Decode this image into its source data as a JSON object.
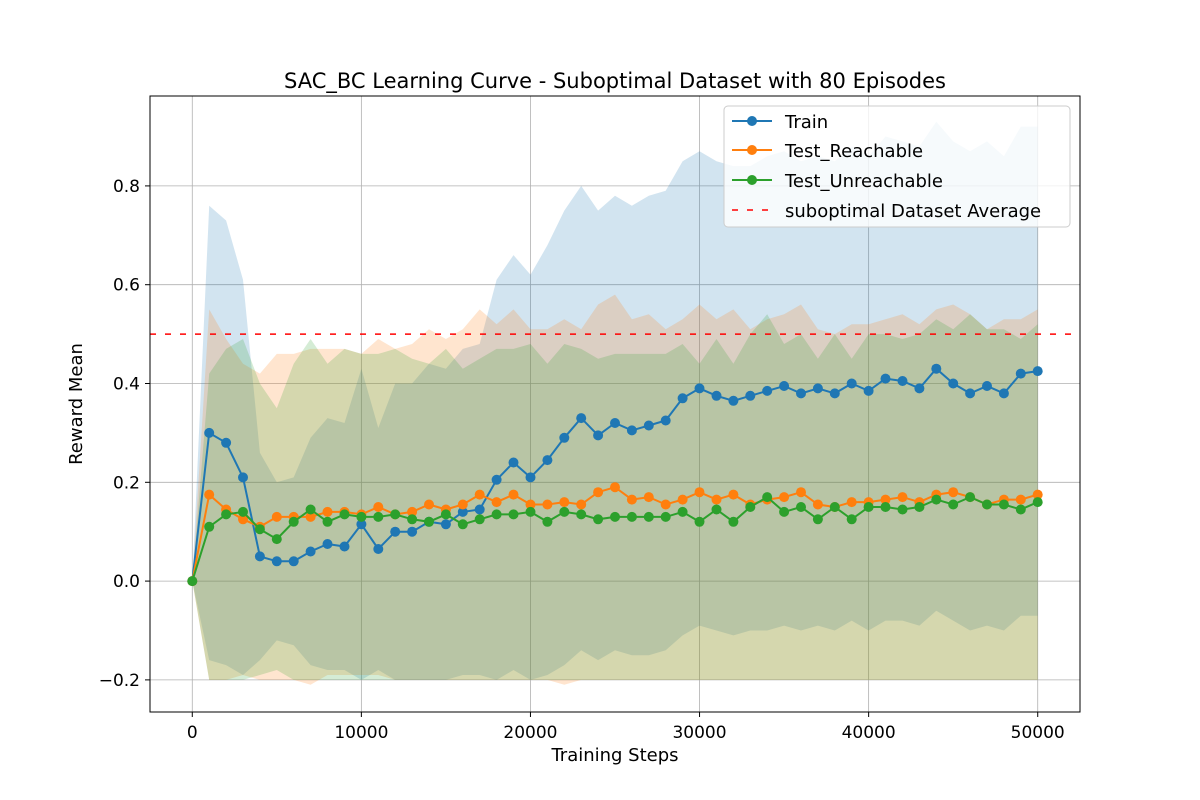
{
  "chart_data": {
    "type": "line",
    "title": "SAC_BC Learning Curve - Suboptimal Dataset with 80 Episodes",
    "xlabel": "Training Steps",
    "ylabel": "Reward Mean",
    "xlim": [
      -2500,
      52500
    ],
    "ylim": [
      -0.265,
      0.982
    ],
    "xticks": [
      0,
      10000,
      20000,
      30000,
      40000,
      50000
    ],
    "xtick_labels": [
      "0",
      "10000",
      "20000",
      "30000",
      "40000",
      "50000"
    ],
    "yticks": [
      -0.2,
      0.0,
      0.2,
      0.4,
      0.6,
      0.8
    ],
    "ytick_labels": [
      "−0.2",
      "0.0",
      "0.2",
      "0.4",
      "0.6",
      "0.8"
    ],
    "grid": true,
    "legend_position": "top-right",
    "x": [
      0,
      1000,
      2000,
      3000,
      4000,
      5000,
      6000,
      7000,
      8000,
      9000,
      10000,
      11000,
      12000,
      13000,
      14000,
      15000,
      16000,
      17000,
      18000,
      19000,
      20000,
      21000,
      22000,
      23000,
      24000,
      25000,
      26000,
      27000,
      28000,
      29000,
      30000,
      31000,
      32000,
      33000,
      34000,
      35000,
      36000,
      37000,
      38000,
      39000,
      40000,
      41000,
      42000,
      43000,
      44000,
      45000,
      46000,
      47000,
      48000,
      49000,
      50000
    ],
    "series": [
      {
        "name": "Train",
        "color": "#1f77b4",
        "values": [
          0.0,
          0.3,
          0.28,
          0.21,
          0.05,
          0.04,
          0.04,
          0.06,
          0.075,
          0.07,
          0.115,
          0.065,
          0.1,
          0.1,
          0.12,
          0.115,
          0.14,
          0.145,
          0.205,
          0.24,
          0.21,
          0.245,
          0.29,
          0.33,
          0.295,
          0.32,
          0.305,
          0.315,
          0.325,
          0.37,
          0.39,
          0.375,
          0.365,
          0.375,
          0.385,
          0.395,
          0.38,
          0.39,
          0.38,
          0.4,
          0.385,
          0.41,
          0.405,
          0.39,
          0.43,
          0.4,
          0.38,
          0.395,
          0.38,
          0.42,
          0.425
        ],
        "upper": [
          0.0,
          0.76,
          0.73,
          0.61,
          0.26,
          0.2,
          0.21,
          0.29,
          0.33,
          0.32,
          0.43,
          0.31,
          0.4,
          0.4,
          0.44,
          0.43,
          0.47,
          0.48,
          0.61,
          0.66,
          0.62,
          0.68,
          0.75,
          0.8,
          0.75,
          0.78,
          0.76,
          0.78,
          0.79,
          0.85,
          0.87,
          0.85,
          0.84,
          0.84,
          0.86,
          0.87,
          0.85,
          0.86,
          0.85,
          0.88,
          0.86,
          0.9,
          0.89,
          0.88,
          0.93,
          0.89,
          0.87,
          0.89,
          0.86,
          0.92,
          0.92
        ],
        "lower": [
          0.0,
          -0.16,
          -0.17,
          -0.19,
          -0.16,
          -0.12,
          -0.13,
          -0.17,
          -0.18,
          -0.18,
          -0.2,
          -0.18,
          -0.2,
          -0.2,
          -0.2,
          -0.2,
          -0.19,
          -0.19,
          -0.2,
          -0.18,
          -0.2,
          -0.19,
          -0.17,
          -0.14,
          -0.16,
          -0.14,
          -0.15,
          -0.15,
          -0.14,
          -0.11,
          -0.09,
          -0.1,
          -0.11,
          -0.1,
          -0.1,
          -0.09,
          -0.1,
          -0.09,
          -0.1,
          -0.08,
          -0.1,
          -0.08,
          -0.08,
          -0.09,
          -0.06,
          -0.08,
          -0.1,
          -0.09,
          -0.1,
          -0.07,
          -0.07
        ]
      },
      {
        "name": "Test_Reachable",
        "color": "#ff7f0e",
        "values": [
          0.0,
          0.175,
          0.145,
          0.125,
          0.11,
          0.13,
          0.13,
          0.13,
          0.14,
          0.14,
          0.135,
          0.15,
          0.135,
          0.14,
          0.155,
          0.145,
          0.155,
          0.175,
          0.16,
          0.175,
          0.155,
          0.155,
          0.16,
          0.155,
          0.18,
          0.19,
          0.165,
          0.17,
          0.155,
          0.165,
          0.18,
          0.165,
          0.175,
          0.155,
          0.165,
          0.17,
          0.18,
          0.155,
          0.15,
          0.16,
          0.16,
          0.165,
          0.17,
          0.16,
          0.175,
          0.18,
          0.17,
          0.155,
          0.165,
          0.165,
          0.175
        ],
        "upper": [
          0.0,
          0.55,
          0.49,
          0.44,
          0.42,
          0.46,
          0.46,
          0.47,
          0.47,
          0.47,
          0.46,
          0.49,
          0.47,
          0.48,
          0.51,
          0.49,
          0.51,
          0.55,
          0.52,
          0.55,
          0.51,
          0.51,
          0.53,
          0.51,
          0.56,
          0.58,
          0.53,
          0.54,
          0.51,
          0.53,
          0.56,
          0.53,
          0.55,
          0.51,
          0.53,
          0.54,
          0.56,
          0.51,
          0.5,
          0.52,
          0.52,
          0.53,
          0.54,
          0.52,
          0.55,
          0.56,
          0.54,
          0.51,
          0.53,
          0.53,
          0.55
        ],
        "lower": [
          0.0,
          -0.2,
          -0.2,
          -0.19,
          -0.2,
          -0.2,
          -0.2,
          -0.21,
          -0.19,
          -0.19,
          -0.19,
          -0.19,
          -0.2,
          -0.2,
          -0.2,
          -0.2,
          -0.2,
          -0.2,
          -0.2,
          -0.2,
          -0.2,
          -0.2,
          -0.21,
          -0.2,
          -0.2,
          -0.2,
          -0.2,
          -0.2,
          -0.2,
          -0.2,
          -0.2,
          -0.2,
          -0.2,
          -0.2,
          -0.2,
          -0.2,
          -0.2,
          -0.2,
          -0.2,
          -0.2,
          -0.2,
          -0.2,
          -0.2,
          -0.2,
          -0.2,
          -0.2,
          -0.2,
          -0.2,
          -0.2,
          -0.2,
          -0.2
        ]
      },
      {
        "name": "Test_Unreachable",
        "color": "#2ca02c",
        "values": [
          0.0,
          0.11,
          0.135,
          0.14,
          0.105,
          0.085,
          0.12,
          0.145,
          0.12,
          0.135,
          0.13,
          0.13,
          0.135,
          0.125,
          0.12,
          0.135,
          0.115,
          0.125,
          0.135,
          0.135,
          0.14,
          0.12,
          0.14,
          0.135,
          0.125,
          0.13,
          0.13,
          0.13,
          0.13,
          0.14,
          0.12,
          0.145,
          0.12,
          0.15,
          0.17,
          0.14,
          0.15,
          0.125,
          0.15,
          0.125,
          0.15,
          0.15,
          0.145,
          0.15,
          0.165,
          0.155,
          0.17,
          0.155,
          0.155,
          0.145,
          0.16
        ],
        "upper": [
          0.0,
          0.42,
          0.47,
          0.49,
          0.4,
          0.35,
          0.44,
          0.49,
          0.44,
          0.47,
          0.46,
          0.46,
          0.47,
          0.45,
          0.44,
          0.47,
          0.43,
          0.45,
          0.47,
          0.47,
          0.48,
          0.44,
          0.48,
          0.47,
          0.45,
          0.46,
          0.46,
          0.46,
          0.46,
          0.48,
          0.44,
          0.49,
          0.44,
          0.5,
          0.54,
          0.48,
          0.5,
          0.45,
          0.5,
          0.45,
          0.5,
          0.5,
          0.49,
          0.5,
          0.53,
          0.51,
          0.54,
          0.51,
          0.51,
          0.49,
          0.52
        ],
        "lower": [
          0.0,
          -0.2,
          -0.2,
          -0.2,
          -0.19,
          -0.18,
          -0.2,
          -0.2,
          -0.2,
          -0.2,
          -0.2,
          -0.2,
          -0.2,
          -0.2,
          -0.2,
          -0.2,
          -0.2,
          -0.2,
          -0.2,
          -0.2,
          -0.2,
          -0.2,
          -0.2,
          -0.2,
          -0.2,
          -0.2,
          -0.2,
          -0.2,
          -0.2,
          -0.2,
          -0.2,
          -0.2,
          -0.2,
          -0.2,
          -0.2,
          -0.2,
          -0.2,
          -0.2,
          -0.2,
          -0.2,
          -0.2,
          -0.2,
          -0.2,
          -0.2,
          -0.2,
          -0.2,
          -0.2,
          -0.2,
          -0.2,
          -0.2,
          -0.2
        ]
      }
    ],
    "reference_line": {
      "name": "suboptimal Dataset Average",
      "value": 0.5,
      "color": "#ff0000",
      "style": "dashed"
    },
    "legend": [
      "Train",
      "Test_Reachable",
      "Test_Unreachable",
      "suboptimal Dataset Average"
    ]
  }
}
